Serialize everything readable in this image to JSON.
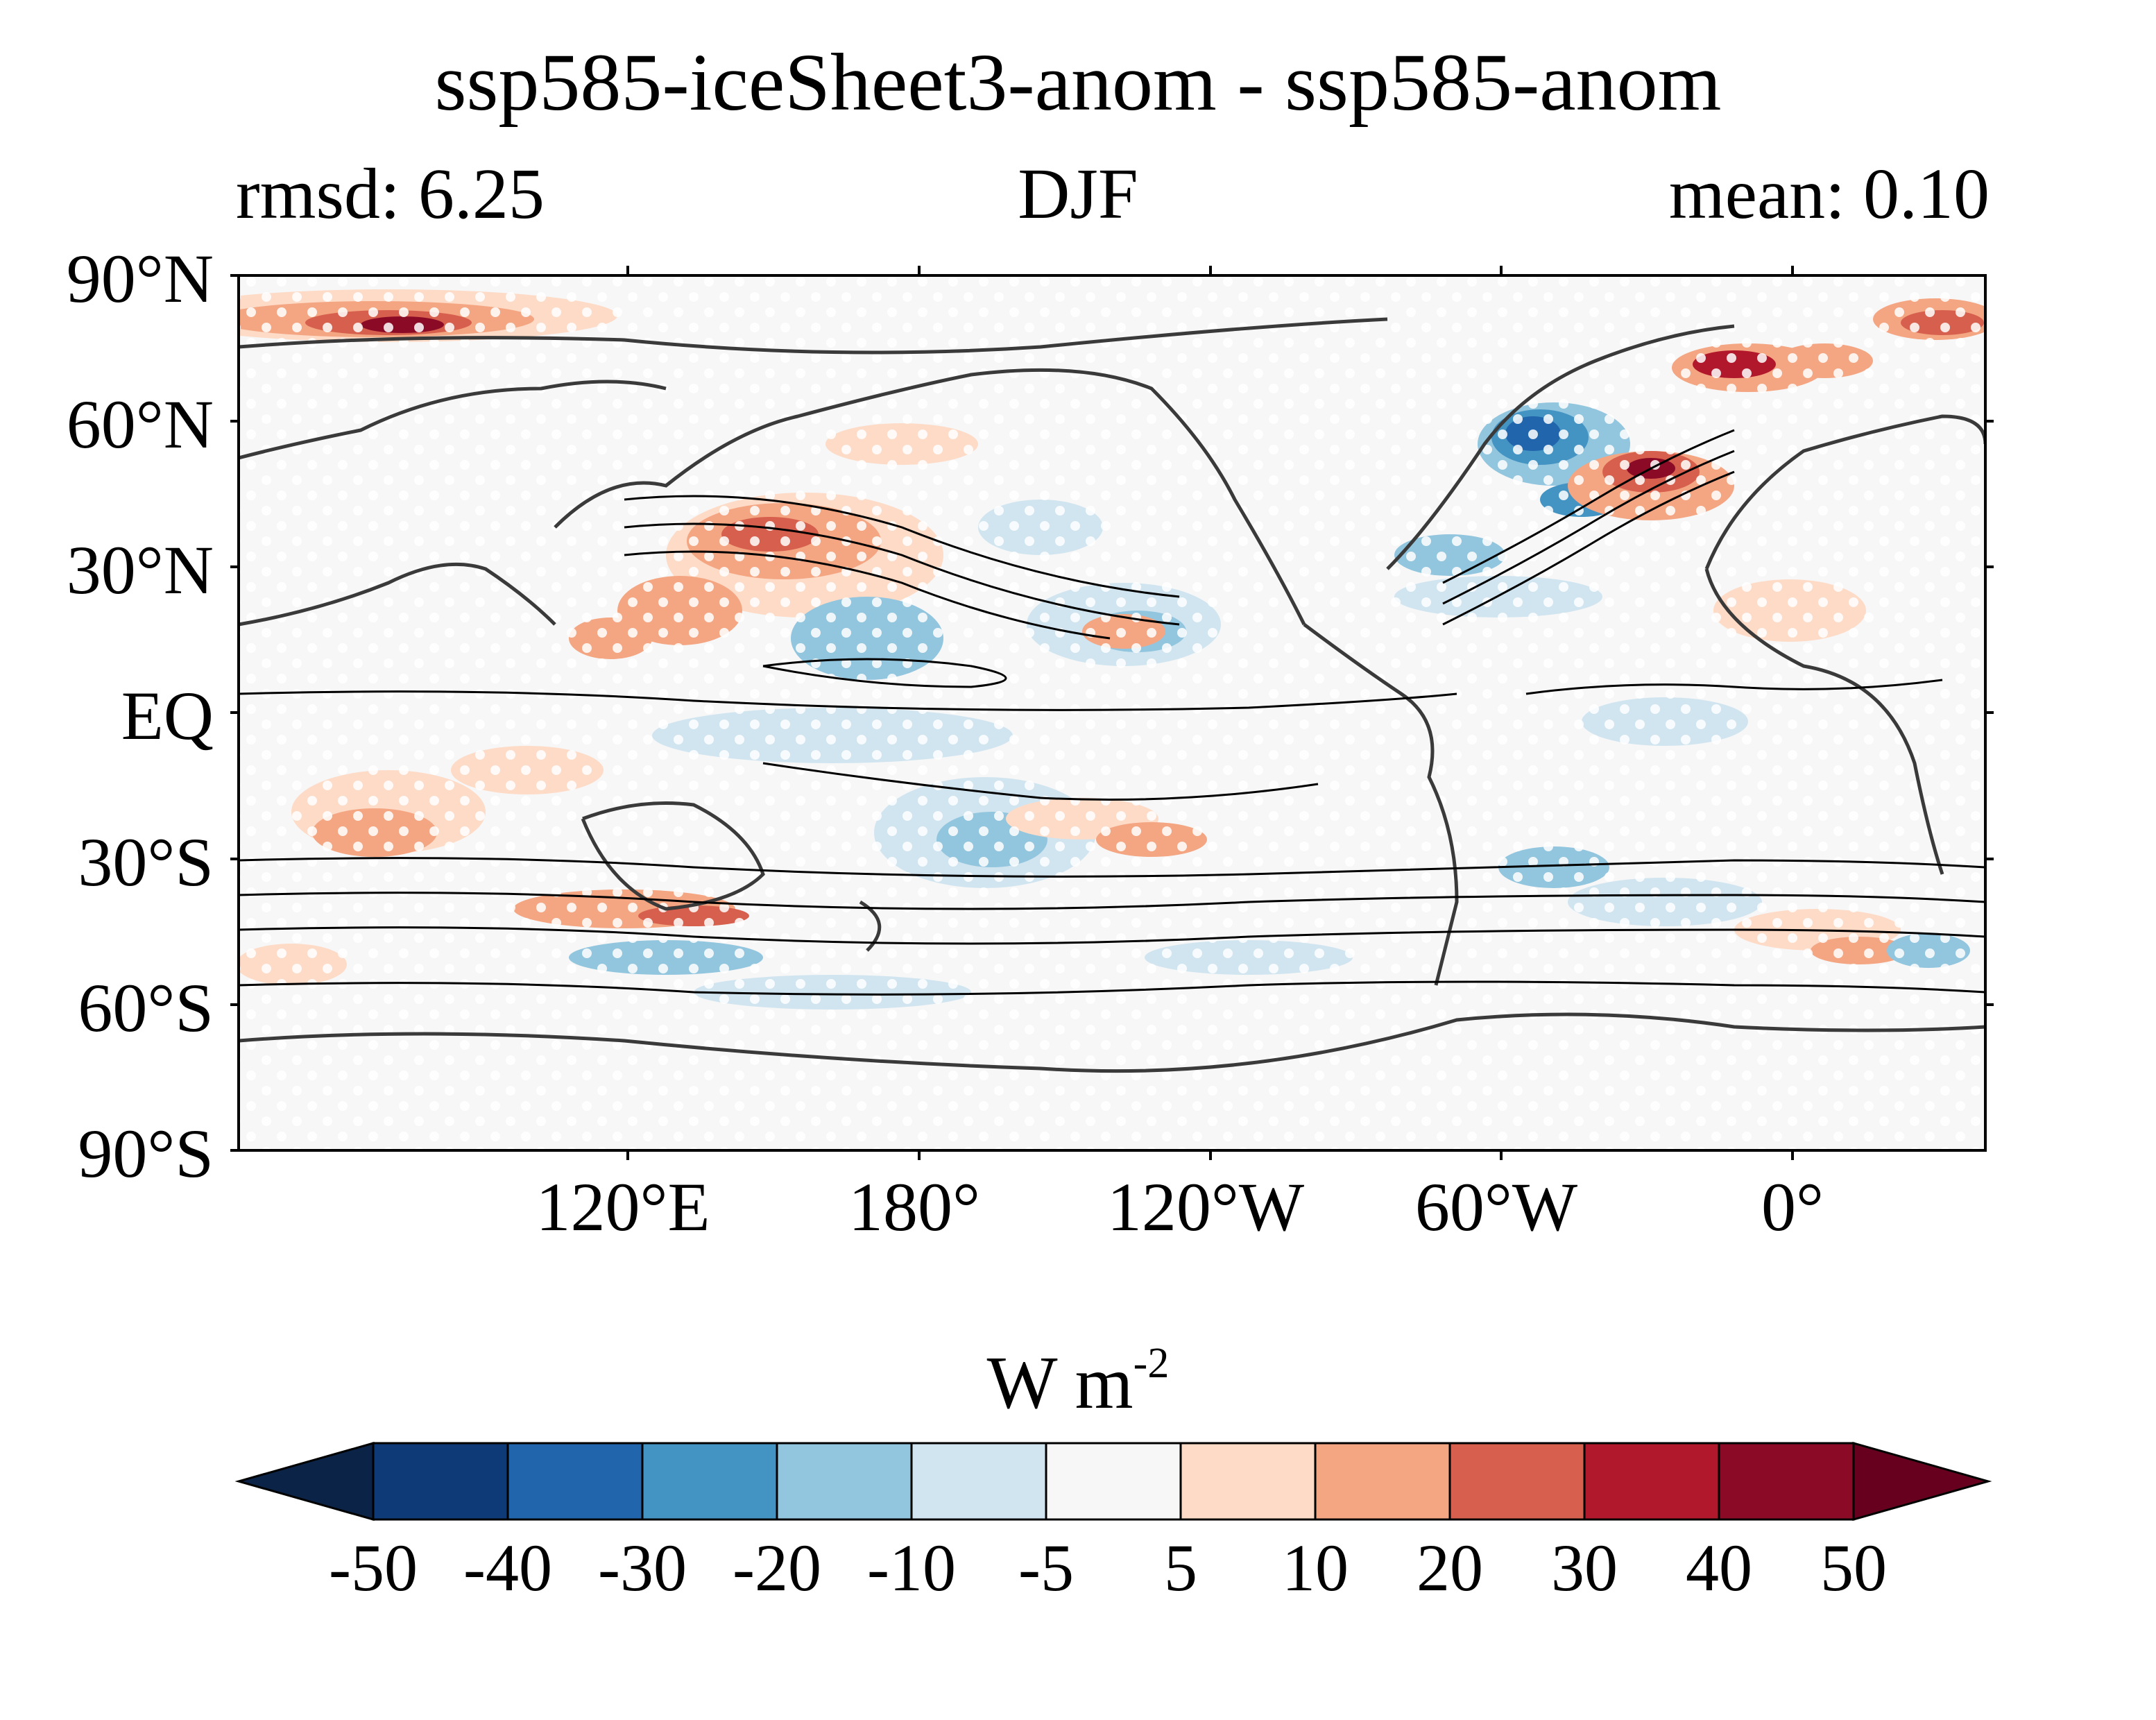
{
  "title": "ssp585-iceSheet3-anom - ssp585-anom",
  "subtitle_left": "rmsd: 6.25",
  "subtitle_center": "DJF",
  "subtitle_right": "mean: 0.10",
  "lat_labels": [
    "90°N",
    "60°N",
    "30°N",
    "EQ",
    "30°S",
    "60°S",
    "90°S"
  ],
  "lon_labels": [
    "120°E",
    "180°",
    "120°W",
    "60°W",
    "0°"
  ],
  "colorbar": {
    "units_main": "W m",
    "units_exp": "-2",
    "levels": [
      "-50",
      "-40",
      "-30",
      "-20",
      "-10",
      "-5",
      "5",
      "10",
      "20",
      "30",
      "40",
      "50"
    ],
    "colors": [
      "#0b2346",
      "#0e3a78",
      "#2166ac",
      "#4393c3",
      "#92c5de",
      "#d1e5f0",
      "#f7f7f7",
      "#fddbc7",
      "#f4a582",
      "#d6604d",
      "#b2182b",
      "#8b0a26",
      "#67001f"
    ]
  },
  "colors": {
    "land_outline": "#3a3a3a",
    "contour": "#000000",
    "stipple": "#ffffff",
    "background": "#f7f7f7"
  }
}
